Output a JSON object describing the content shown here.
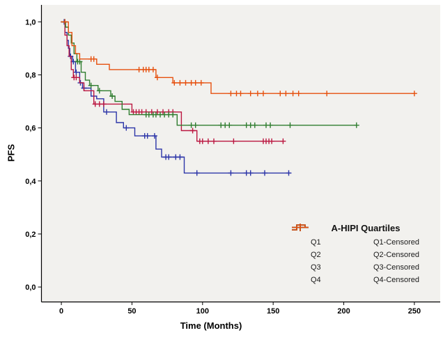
{
  "colors": {
    "page_bg": "#ffffff",
    "plot_bg": "#f2f1ee",
    "axis": "#000000",
    "text": "#000000",
    "q1": "#2c35a8",
    "q2": "#bb1740",
    "q3": "#2f7d2f",
    "q4": "#e6500e"
  },
  "chart_data": {
    "type": "line",
    "variant": "kaplan_meier_step_survival",
    "title": "",
    "xlabel": "Time (Months)",
    "ylabel": "PFS",
    "xlim": [
      -14.1,
      268.3
    ],
    "ylim": [
      -0.055,
      1.064
    ],
    "xticks": {
      "values": [
        0,
        50,
        100,
        150,
        200,
        250
      ],
      "labels": [
        "0",
        "50",
        "100",
        "150",
        "200",
        "250"
      ]
    },
    "yticks": {
      "values": [
        0.0,
        0.2,
        0.4,
        0.6,
        0.8,
        1.0
      ],
      "labels": [
        "0,0",
        "0,2",
        "0,4",
        "0,6",
        "0,8",
        "1,0"
      ]
    },
    "grid": false,
    "legend_title": "A-HIPI Quartiles",
    "legend_position": "inside-lower-right",
    "series": [
      {
        "name": "Q1",
        "censored_name": "Q1-Censored",
        "color": "#2c35a8",
        "steps": [
          [
            0,
            1.0
          ],
          [
            2.5,
            0.96
          ],
          [
            4,
            0.93
          ],
          [
            5,
            0.9
          ],
          [
            6,
            0.87
          ],
          [
            8,
            0.85
          ],
          [
            10,
            0.81
          ],
          [
            13,
            0.77
          ],
          [
            15,
            0.75
          ],
          [
            21,
            0.72
          ],
          [
            25,
            0.71
          ],
          [
            30,
            0.66
          ],
          [
            39,
            0.62
          ],
          [
            44,
            0.6
          ],
          [
            52,
            0.57
          ],
          [
            67,
            0.52
          ],
          [
            71,
            0.49
          ],
          [
            87,
            0.43
          ],
          [
            162,
            0.43
          ]
        ],
        "censored_points": [
          [
            2,
            1.0
          ],
          [
            6.5,
            0.87
          ],
          [
            8.5,
            0.85
          ],
          [
            10.5,
            0.81
          ],
          [
            13.5,
            0.77
          ],
          [
            16,
            0.75
          ],
          [
            32,
            0.66
          ],
          [
            46,
            0.6
          ],
          [
            59,
            0.57
          ],
          [
            61,
            0.57
          ],
          [
            66,
            0.57
          ],
          [
            74,
            0.49
          ],
          [
            76,
            0.49
          ],
          [
            81,
            0.49
          ],
          [
            84,
            0.49
          ],
          [
            96,
            0.43
          ],
          [
            120,
            0.43
          ],
          [
            131,
            0.43
          ],
          [
            134,
            0.43
          ],
          [
            144,
            0.43
          ],
          [
            161,
            0.43
          ]
        ]
      },
      {
        "name": "Q2",
        "censored_name": "Q2-Censored",
        "color": "#bb1740",
        "steps": [
          [
            0,
            1.0
          ],
          [
            2.5,
            0.95
          ],
          [
            4,
            0.91
          ],
          [
            5.5,
            0.87
          ],
          [
            7,
            0.82
          ],
          [
            8.5,
            0.79
          ],
          [
            13,
            0.77
          ],
          [
            16,
            0.74
          ],
          [
            23,
            0.69
          ],
          [
            50,
            0.66
          ],
          [
            85,
            0.59
          ],
          [
            96,
            0.55
          ],
          [
            157,
            0.55
          ]
        ],
        "censored_points": [
          [
            9,
            0.79
          ],
          [
            10.5,
            0.79
          ],
          [
            24,
            0.69
          ],
          [
            27,
            0.69
          ],
          [
            30,
            0.69
          ],
          [
            51,
            0.66
          ],
          [
            53,
            0.66
          ],
          [
            55,
            0.66
          ],
          [
            57,
            0.66
          ],
          [
            60,
            0.66
          ],
          [
            64,
            0.66
          ],
          [
            68,
            0.66
          ],
          [
            72,
            0.66
          ],
          [
            76,
            0.66
          ],
          [
            79,
            0.66
          ],
          [
            93,
            0.59
          ],
          [
            98,
            0.55
          ],
          [
            100,
            0.55
          ],
          [
            104,
            0.55
          ],
          [
            108,
            0.55
          ],
          [
            122,
            0.55
          ],
          [
            143,
            0.55
          ],
          [
            145,
            0.55
          ],
          [
            147,
            0.55
          ],
          [
            149,
            0.55
          ],
          [
            157,
            0.55
          ]
        ]
      },
      {
        "name": "Q3",
        "censored_name": "Q3-Censored",
        "color": "#2f7d2f",
        "steps": [
          [
            0,
            1.0
          ],
          [
            3,
            0.98
          ],
          [
            5,
            0.95
          ],
          [
            7,
            0.92
          ],
          [
            9,
            0.88
          ],
          [
            11,
            0.85
          ],
          [
            14,
            0.81
          ],
          [
            17,
            0.78
          ],
          [
            20,
            0.76
          ],
          [
            26,
            0.74
          ],
          [
            35,
            0.72
          ],
          [
            38,
            0.7
          ],
          [
            43,
            0.67
          ],
          [
            48,
            0.65
          ],
          [
            82,
            0.61
          ],
          [
            209,
            0.61
          ]
        ],
        "censored_points": [
          [
            2.5,
            1.0
          ],
          [
            11.5,
            0.85
          ],
          [
            13,
            0.85
          ],
          [
            21,
            0.76
          ],
          [
            27,
            0.74
          ],
          [
            36,
            0.72
          ],
          [
            60,
            0.65
          ],
          [
            62,
            0.65
          ],
          [
            65,
            0.65
          ],
          [
            67,
            0.65
          ],
          [
            70,
            0.65
          ],
          [
            73,
            0.65
          ],
          [
            76,
            0.65
          ],
          [
            79,
            0.65
          ],
          [
            92,
            0.61
          ],
          [
            95,
            0.61
          ],
          [
            113,
            0.61
          ],
          [
            116,
            0.61
          ],
          [
            119,
            0.61
          ],
          [
            131,
            0.61
          ],
          [
            134,
            0.61
          ],
          [
            137,
            0.61
          ],
          [
            145,
            0.61
          ],
          [
            148,
            0.61
          ],
          [
            162,
            0.61
          ],
          [
            209,
            0.61
          ]
        ]
      },
      {
        "name": "Q4",
        "censored_name": "Q4-Censored",
        "color": "#e6500e",
        "steps": [
          [
            0,
            1.0
          ],
          [
            5,
            0.96
          ],
          [
            7.5,
            0.91
          ],
          [
            10,
            0.88
          ],
          [
            13,
            0.86
          ],
          [
            25,
            0.84
          ],
          [
            34,
            0.82
          ],
          [
            67,
            0.79
          ],
          [
            79,
            0.77
          ],
          [
            106,
            0.73
          ],
          [
            250,
            0.73
          ]
        ],
        "censored_points": [
          [
            2.5,
            1.0
          ],
          [
            21,
            0.86
          ],
          [
            23,
            0.86
          ],
          [
            55,
            0.82
          ],
          [
            58,
            0.82
          ],
          [
            60,
            0.82
          ],
          [
            62,
            0.82
          ],
          [
            65,
            0.82
          ],
          [
            68,
            0.79
          ],
          [
            80,
            0.77
          ],
          [
            84,
            0.77
          ],
          [
            88,
            0.77
          ],
          [
            92,
            0.77
          ],
          [
            95,
            0.77
          ],
          [
            99,
            0.77
          ],
          [
            120,
            0.73
          ],
          [
            124,
            0.73
          ],
          [
            127,
            0.73
          ],
          [
            134,
            0.73
          ],
          [
            139,
            0.73
          ],
          [
            143,
            0.73
          ],
          [
            155,
            0.73
          ],
          [
            159,
            0.73
          ],
          [
            164,
            0.73
          ],
          [
            168,
            0.73
          ],
          [
            188,
            0.73
          ],
          [
            250,
            0.73
          ]
        ]
      }
    ]
  }
}
